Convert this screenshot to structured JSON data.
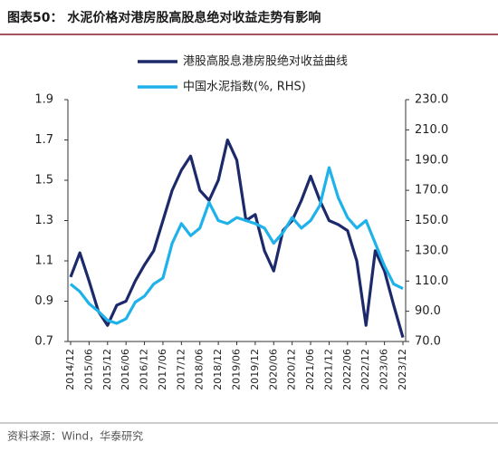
{
  "title": "图表50： 水泥价格对港房股高股息绝对收益走势有影响",
  "source": "资料来源：Wind，华泰研究",
  "chart_data": {
    "type": "line",
    "categories": [
      "2014/12",
      null,
      "2015/06",
      null,
      "2015/12",
      null,
      "2016/06",
      null,
      "2016/12",
      null,
      "2017/06",
      null,
      "2017/12",
      null,
      "2018/06",
      null,
      "2018/12",
      null,
      "2019/06",
      null,
      "2019/12",
      null,
      "2020/06",
      null,
      "2020/12",
      null,
      "2021/06",
      null,
      "2021/12",
      null,
      "2022/06",
      null,
      "2022/12",
      null,
      "2023/06",
      null,
      "2023/12"
    ],
    "series": [
      {
        "name": "港股高股息港房股绝对收益曲线",
        "color": "#1c2a6b",
        "values": [
          1.02,
          1.14,
          1.0,
          0.85,
          0.78,
          0.88,
          0.9,
          1.0,
          1.08,
          1.15,
          1.3,
          1.45,
          1.55,
          1.62,
          1.45,
          1.4,
          1.5,
          1.7,
          1.6,
          1.3,
          1.33,
          1.15,
          1.05,
          1.25,
          1.3,
          1.4,
          1.52,
          1.4,
          1.3,
          1.28,
          1.25,
          1.1,
          0.78,
          1.15,
          1.05,
          0.88,
          0.72
        ]
      },
      {
        "name": "中国水泥指数(%, RHS)",
        "color": "#1fb2ea",
        "axis": "y2",
        "values": [
          108,
          103,
          95,
          90,
          84,
          82,
          85,
          96,
          100,
          108,
          112,
          135,
          148,
          140,
          145,
          162,
          150,
          148,
          152,
          150,
          148,
          145,
          135,
          142,
          152,
          145,
          150,
          160,
          185,
          165,
          152,
          145,
          150,
          135,
          120,
          108,
          105
        ]
      }
    ],
    "ylim": [
      0.7,
      1.9
    ],
    "yticks": [
      0.7,
      0.9,
      1.1,
      1.3,
      1.5,
      1.7,
      1.9
    ],
    "y2lim": [
      70,
      230
    ],
    "y2ticks": [
      {
        "value": 70,
        "label": "70.0"
      },
      {
        "value": 90,
        "label": "90.0"
      },
      {
        "value": 110,
        "label": "110.0"
      },
      {
        "value": 130,
        "label": "130.0"
      },
      {
        "value": 150,
        "label": "150.0"
      },
      {
        "value": 170,
        "label": "170.0"
      },
      {
        "value": 190,
        "label": "190.0"
      },
      {
        "value": 210,
        "label": "210.0"
      },
      {
        "value": 230,
        "label": "230.0"
      }
    ],
    "legend": "top"
  }
}
